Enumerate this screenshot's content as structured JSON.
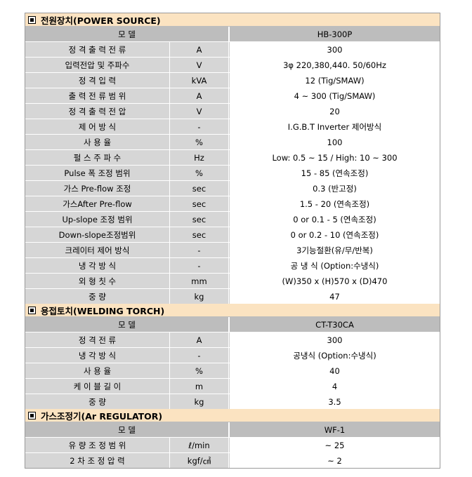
{
  "sections": [
    {
      "title": "전원장치(POWER SOURCE)",
      "model_label": "모 델",
      "model_value": "HB-300P",
      "rows": [
        {
          "name": "정 격 출 력 전 류",
          "unit": "A",
          "value": "300"
        },
        {
          "name": "입력전압 및 주파수",
          "unit": "V",
          "value": "3φ 220,380,440. 50/60Hz"
        },
        {
          "name": "정 격 입 력",
          "unit": "kVA",
          "value": "12 (Tig/SMAW)"
        },
        {
          "name": "출 력 전 류 범 위",
          "unit": "A",
          "value": "4 ~ 300 (Tig/SMAW)"
        },
        {
          "name": "정 격 출 력 전 압",
          "unit": "V",
          "value": "20"
        },
        {
          "name": "제 어 방 식",
          "unit": "-",
          "value": "I.G.B.T Inverter 제어방식"
        },
        {
          "name": "사 용 율",
          "unit": "%",
          "value": "100"
        },
        {
          "name": "펄 스 주 파 수",
          "unit": "Hz",
          "value": "Low: 0.5 ~ 15 / High: 10 ~ 300"
        },
        {
          "name": "Pulse 폭 조정 범위",
          "unit": "%",
          "value": "15 - 85 (연속조정)"
        },
        {
          "name": "가스 Pre-flow 조정",
          "unit": "sec",
          "value": "0.3 (반고정)"
        },
        {
          "name": "가스After Pre-flow",
          "unit": "sec",
          "value": "1.5 - 20 (연속조정)"
        },
        {
          "name": "Up-slope 조정 범위",
          "unit": "sec",
          "value": "0 or 0.1 - 5 (연속조정)"
        },
        {
          "name": "Down-slope조정범위",
          "unit": "sec",
          "value": "0 or 0.2 - 10 (연속조정)"
        },
        {
          "name": "크레이터 제어 방식",
          "unit": "-",
          "value": "3기능절환(유/무/반복)"
        },
        {
          "name": "냉 각 방 식",
          "unit": "-",
          "value": "공 냉 식 (Option:수냉식)"
        },
        {
          "name": "외 형 칫 수",
          "unit": "mm",
          "value": "(W)350 x (H)570 x (D)470"
        },
        {
          "name": "중 량",
          "unit": "kg",
          "value": "47"
        }
      ]
    },
    {
      "title": "용접토치(WELDING TORCH)",
      "model_label": "모 델",
      "model_value": "CT-T30CA",
      "rows": [
        {
          "name": "정 격 전 류",
          "unit": "A",
          "value": "300"
        },
        {
          "name": "냉 각 방 식",
          "unit": "-",
          "value": "공냉식 (Option:수냉식)"
        },
        {
          "name": "사 용 율",
          "unit": "%",
          "value": "40"
        },
        {
          "name": "케 이 블 길 이",
          "unit": "m",
          "value": "4"
        },
        {
          "name": "중 량",
          "unit": "kg",
          "value": "3.5"
        }
      ]
    },
    {
      "title": "가스조정기(Ar REGULATOR)",
      "model_label": "모 델",
      "model_value": "WF-1",
      "rows": [
        {
          "name": "유 량 조 정 범 위",
          "unit": "ℓ/min",
          "value": "~ 25"
        },
        {
          "name": "2 차 조 정 압 력",
          "unit": "kgf/㎠",
          "value": "~ 2"
        }
      ]
    }
  ]
}
